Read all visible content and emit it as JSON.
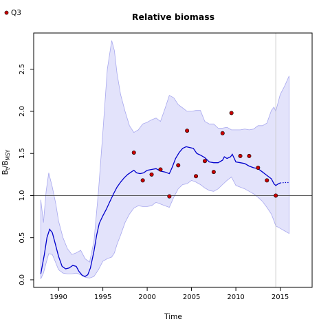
{
  "chart_data": {
    "type": "line",
    "title": "Relative biomass",
    "xlabel": "Time",
    "ylabel": {
      "main": "B",
      "sub1": "t",
      "sep": "/B",
      "sub2": "MSY"
    },
    "xlim": [
      1987.2,
      2018.6
    ],
    "ylim": [
      -0.09,
      2.93
    ],
    "xticks": [
      1990,
      1995,
      2000,
      2005,
      2010,
      2015
    ],
    "xtick_labels": [
      "1990",
      "1995",
      "2000",
      "2005",
      "2010",
      "2015"
    ],
    "yticks": [
      0.0,
      0.5,
      1.0,
      1.5,
      2.0,
      2.5
    ],
    "ytick_labels": [
      "0.0",
      "0.5",
      "1.0",
      "1.5",
      "2.0",
      "2.5"
    ],
    "reference_line_y": 1.0,
    "vertical_line_x": 2014.5,
    "legend": {
      "position": "top-left",
      "entries": [
        {
          "label": "Q3",
          "marker": "point",
          "color": "#cc0000"
        }
      ]
    },
    "colors": {
      "line": "#0000cc",
      "band_fill": "#e3e3fb",
      "band_edge": "#a8a8ee",
      "points": "#cc0000",
      "refline": "#444444",
      "vline": "#c8c8c8"
    },
    "series": [
      {
        "name": "Q3",
        "kind": "scatter",
        "x": [
          1998.5,
          1999.5,
          2000.5,
          2001.5,
          2002.5,
          2003.5,
          2004.5,
          2005.5,
          2006.5,
          2007.5,
          2008.5,
          2009.5,
          2010.5,
          2011.5,
          2012.5,
          2013.5,
          2014.5
        ],
        "y": [
          1.51,
          1.18,
          1.25,
          1.31,
          0.99,
          1.36,
          1.77,
          1.23,
          1.41,
          1.28,
          1.74,
          1.98,
          1.47,
          1.47,
          1.33,
          1.18,
          1.0
        ]
      },
      {
        "kind": "line",
        "x": [
          1988.0,
          1988.4,
          1988.7,
          1989.0,
          1989.3,
          1989.6,
          1990.0,
          1990.4,
          1990.8,
          1991.2,
          1991.6,
          1992.0,
          1992.3,
          1992.7,
          1993.0,
          1993.3,
          1993.6,
          1994.0,
          1994.3,
          1994.6,
          1995.0,
          1995.4,
          1995.8,
          1996.2,
          1996.6,
          1997.0,
          1997.4,
          1997.8,
          1998.2,
          1998.5,
          1998.8,
          1999.2,
          1999.6,
          2000.0,
          2000.5,
          2001.0,
          2001.5,
          2002.0,
          2002.5,
          2002.8,
          2003.2,
          2003.6,
          2004.0,
          2004.4,
          2004.8,
          2005.2,
          2005.6,
          2006.0,
          2006.5,
          2007.0,
          2007.5,
          2008.0,
          2008.5,
          2008.7,
          2009.0,
          2009.4,
          2009.6,
          2010.0,
          2010.5,
          2011.0,
          2011.5,
          2012.0,
          2012.5,
          2013.0,
          2013.5,
          2014.0,
          2014.3,
          2014.5,
          2014.8,
          2015.0
        ],
        "y": [
          0.07,
          0.3,
          0.5,
          0.6,
          0.56,
          0.44,
          0.28,
          0.16,
          0.13,
          0.14,
          0.17,
          0.16,
          0.1,
          0.05,
          0.04,
          0.06,
          0.14,
          0.34,
          0.53,
          0.67,
          0.76,
          0.84,
          0.93,
          1.02,
          1.1,
          1.16,
          1.21,
          1.25,
          1.28,
          1.3,
          1.27,
          1.26,
          1.27,
          1.3,
          1.31,
          1.32,
          1.29,
          1.28,
          1.26,
          1.33,
          1.44,
          1.51,
          1.56,
          1.58,
          1.57,
          1.56,
          1.5,
          1.48,
          1.45,
          1.4,
          1.39,
          1.39,
          1.42,
          1.46,
          1.44,
          1.46,
          1.49,
          1.4,
          1.39,
          1.38,
          1.35,
          1.33,
          1.32,
          1.28,
          1.24,
          1.2,
          1.14,
          1.12,
          1.14,
          1.15
        ]
      },
      {
        "kind": "line",
        "style": "dotted",
        "x": [
          2015.0,
          2015.5,
          2016.0
        ],
        "y": [
          1.15,
          1.155,
          1.155
        ]
      },
      {
        "kind": "band",
        "x": [
          1988.0,
          1988.3,
          1988.6,
          1988.9,
          1989.3,
          1989.7,
          1990.0,
          1990.5,
          1991.0,
          1991.5,
          1992.0,
          1992.5,
          1993.0,
          1993.5,
          1994.0,
          1994.5,
          1995.0,
          1995.5,
          1996.0,
          1996.3,
          1996.6,
          1997.0,
          1997.5,
          1998.0,
          1998.5,
          1999.0,
          1999.5,
          2000.0,
          2000.5,
          2001.0,
          2001.5,
          2002.0,
          2002.5,
          2003.0,
          2003.5,
          2004.0,
          2004.5,
          2005.0,
          2005.5,
          2006.0,
          2006.5,
          2007.0,
          2007.5,
          2008.0,
          2008.5,
          2009.0,
          2009.5,
          2010.0,
          2010.5,
          2011.0,
          2011.5,
          2012.0,
          2012.5,
          2013.0,
          2013.5,
          2014.0,
          2014.3,
          2014.5,
          2015.0,
          2015.5,
          2016.0
        ],
        "lower": [
          0.01,
          0.08,
          0.2,
          0.31,
          0.3,
          0.2,
          0.12,
          0.08,
          0.07,
          0.07,
          0.08,
          0.06,
          0.03,
          0.02,
          0.04,
          0.12,
          0.22,
          0.25,
          0.27,
          0.32,
          0.42,
          0.53,
          0.68,
          0.78,
          0.85,
          0.88,
          0.87,
          0.87,
          0.88,
          0.92,
          0.9,
          0.88,
          0.86,
          0.98,
          1.08,
          1.13,
          1.14,
          1.18,
          1.16,
          1.13,
          1.09,
          1.06,
          1.05,
          1.08,
          1.13,
          1.18,
          1.22,
          1.12,
          1.1,
          1.08,
          1.05,
          1.02,
          0.98,
          0.93,
          0.86,
          0.78,
          0.7,
          0.64,
          0.61,
          0.58,
          0.55
        ],
        "upper": [
          0.95,
          0.68,
          1.05,
          1.27,
          1.1,
          0.9,
          0.7,
          0.5,
          0.37,
          0.3,
          0.32,
          0.35,
          0.25,
          0.21,
          0.46,
          1.05,
          1.75,
          2.5,
          2.84,
          2.72,
          2.45,
          2.2,
          2.0,
          1.83,
          1.75,
          1.78,
          1.85,
          1.87,
          1.9,
          1.92,
          1.88,
          2.03,
          2.19,
          2.16,
          2.08,
          2.04,
          2.0,
          2.0,
          2.01,
          2.01,
          1.88,
          1.85,
          1.85,
          1.8,
          1.8,
          1.81,
          1.78,
          1.78,
          1.78,
          1.79,
          1.78,
          1.79,
          1.83,
          1.83,
          1.86,
          2.01,
          2.05,
          2.0,
          2.2,
          2.3,
          2.42
        ]
      }
    ]
  }
}
